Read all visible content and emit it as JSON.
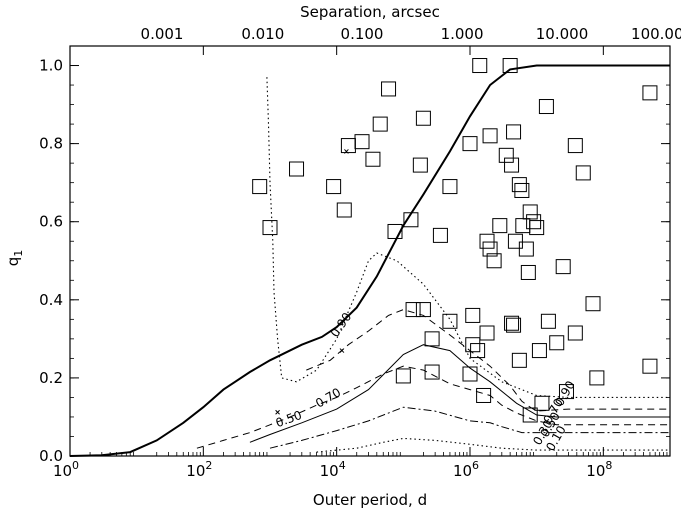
{
  "chart_data": {
    "type": "scatter",
    "title": "",
    "xlabel": "Outer period, d",
    "ylabel": "q",
    "ylabel_sub": "1",
    "xscale": "log",
    "xlim": [
      1,
      1000000000
    ],
    "ylim": [
      0,
      1.05
    ],
    "x_ticks": [
      {
        "value": 1,
        "base": "10",
        "exp": "0"
      },
      {
        "value": 100,
        "base": "10",
        "exp": "2"
      },
      {
        "value": 10000,
        "base": "10",
        "exp": "4"
      },
      {
        "value": 1000000,
        "base": "10",
        "exp": "6"
      },
      {
        "value": 100000000,
        "base": "10",
        "exp": "8"
      }
    ],
    "y_ticks": [
      {
        "value": 0.0,
        "label": "0.0"
      },
      {
        "value": 0.2,
        "label": "0.2"
      },
      {
        "value": 0.4,
        "label": "0.4"
      },
      {
        "value": 0.6,
        "label": "0.6"
      },
      {
        "value": 0.8,
        "label": "0.8"
      },
      {
        "value": 1.0,
        "label": "1.0"
      }
    ],
    "top_axis": {
      "label": "Separation, arcsec",
      "ticks": [
        {
          "x": 24,
          "label": "0.001"
        },
        {
          "x": 780,
          "label": "0.010"
        },
        {
          "x": 24000,
          "label": "0.100"
        },
        {
          "x": 760000,
          "label": "1.000"
        },
        {
          "x": 24000000,
          "label": "10.000"
        },
        {
          "x": 760000000,
          "label": "100.000"
        }
      ]
    },
    "points": [
      {
        "x": 700,
        "y": 0.69
      },
      {
        "x": 1000,
        "y": 0.585
      },
      {
        "x": 2500,
        "y": 0.735
      },
      {
        "x": 9000,
        "y": 0.69
      },
      {
        "x": 13000,
        "y": 0.63
      },
      {
        "x": 15000,
        "y": 0.795
      },
      {
        "x": 24000,
        "y": 0.805
      },
      {
        "x": 35000,
        "y": 0.76
      },
      {
        "x": 45000,
        "y": 0.85
      },
      {
        "x": 60000,
        "y": 0.94
      },
      {
        "x": 75000,
        "y": 0.575
      },
      {
        "x": 100000,
        "y": 0.205
      },
      {
        "x": 130000,
        "y": 0.605
      },
      {
        "x": 180000,
        "y": 0.745
      },
      {
        "x": 200000,
        "y": 0.865
      },
      {
        "x": 140000,
        "y": 0.375
      },
      {
        "x": 200000,
        "y": 0.375
      },
      {
        "x": 270000,
        "y": 0.3
      },
      {
        "x": 270000,
        "y": 0.215
      },
      {
        "x": 360000,
        "y": 0.565
      },
      {
        "x": 500000,
        "y": 0.69
      },
      {
        "x": 500000,
        "y": 0.345
      },
      {
        "x": 1000000,
        "y": 0.8
      },
      {
        "x": 1000000,
        "y": 0.21
      },
      {
        "x": 1100000,
        "y": 0.36
      },
      {
        "x": 1100000,
        "y": 0.285
      },
      {
        "x": 1300000,
        "y": 0.27
      },
      {
        "x": 1600000,
        "y": 0.155
      },
      {
        "x": 1400000,
        "y": 1.0
      },
      {
        "x": 1800000,
        "y": 0.55
      },
      {
        "x": 2000000,
        "y": 0.82
      },
      {
        "x": 2000000,
        "y": 0.53
      },
      {
        "x": 1800000,
        "y": 0.315
      },
      {
        "x": 2300000,
        "y": 0.5
      },
      {
        "x": 2800000,
        "y": 0.59
      },
      {
        "x": 3500000,
        "y": 0.77
      },
      {
        "x": 4000000,
        "y": 1.0
      },
      {
        "x": 4200000,
        "y": 0.745
      },
      {
        "x": 4500000,
        "y": 0.83
      },
      {
        "x": 4800000,
        "y": 0.55
      },
      {
        "x": 4200000,
        "y": 0.34
      },
      {
        "x": 4500000,
        "y": 0.335
      },
      {
        "x": 5500000,
        "y": 0.695
      },
      {
        "x": 6000000,
        "y": 0.68
      },
      {
        "x": 6200000,
        "y": 0.59
      },
      {
        "x": 5500000,
        "y": 0.245
      },
      {
        "x": 7000000,
        "y": 0.53
      },
      {
        "x": 7500000,
        "y": 0.47
      },
      {
        "x": 8000000,
        "y": 0.625
      },
      {
        "x": 9000000,
        "y": 0.6
      },
      {
        "x": 10000000,
        "y": 0.585
      },
      {
        "x": 8000000,
        "y": 0.105
      },
      {
        "x": 11000000,
        "y": 0.27
      },
      {
        "x": 12000000,
        "y": 0.135
      },
      {
        "x": 14000000,
        "y": 0.895
      },
      {
        "x": 15000000,
        "y": 0.345
      },
      {
        "x": 20000000,
        "y": 0.29
      },
      {
        "x": 25000000,
        "y": 0.485
      },
      {
        "x": 28000000,
        "y": 0.165
      },
      {
        "x": 38000000,
        "y": 0.795
      },
      {
        "x": 50000000,
        "y": 0.725
      },
      {
        "x": 38000000,
        "y": 0.315
      },
      {
        "x": 70000000,
        "y": 0.39
      },
      {
        "x": 80000000,
        "y": 0.2
      },
      {
        "x": 500000000,
        "y": 0.93
      },
      {
        "x": 500000000,
        "y": 0.23
      }
    ],
    "curves": [
      {
        "style": "solid-thick",
        "points": [
          [
            1,
            0
          ],
          [
            3,
            0.002
          ],
          [
            8,
            0.01
          ],
          [
            20,
            0.04
          ],
          [
            50,
            0.085
          ],
          [
            100,
            0.125
          ],
          [
            200,
            0.17
          ],
          [
            500,
            0.215
          ],
          [
            1000,
            0.245
          ],
          [
            3000,
            0.285
          ],
          [
            6000,
            0.305
          ],
          [
            10000,
            0.33
          ],
          [
            20000,
            0.38
          ],
          [
            40000,
            0.46
          ],
          [
            100000,
            0.59
          ],
          [
            200000,
            0.67
          ],
          [
            500000,
            0.78
          ],
          [
            1000000,
            0.87
          ],
          [
            2000000,
            0.95
          ],
          [
            4000000,
            0.99
          ],
          [
            10000000,
            1.0
          ],
          [
            1000000000,
            1.0
          ]
        ]
      },
      {
        "style": "dotted",
        "points": [
          [
            900,
            0.97
          ],
          [
            950,
            0.85
          ],
          [
            1000,
            0.7
          ],
          [
            1100,
            0.55
          ],
          [
            1150,
            0.42
          ],
          [
            1300,
            0.3
          ],
          [
            1500,
            0.2
          ],
          [
            2500,
            0.19
          ],
          [
            5000,
            0.22
          ],
          [
            10000,
            0.3
          ],
          [
            20000,
            0.42
          ],
          [
            30000,
            0.5
          ],
          [
            40000,
            0.52
          ],
          [
            80000,
            0.5
          ],
          [
            200000,
            0.44
          ],
          [
            500000,
            0.35
          ],
          [
            1000000,
            0.25
          ],
          [
            3000000,
            0.19
          ],
          [
            10000000,
            0.155
          ],
          [
            30000000,
            0.15
          ],
          [
            1000000000,
            0.15
          ]
        ]
      },
      {
        "style": "dashed",
        "points": [
          [
            3500,
            0.22
          ],
          [
            8000,
            0.245
          ],
          [
            15000,
            0.285
          ],
          [
            30000,
            0.32
          ],
          [
            60000,
            0.36
          ],
          [
            100000,
            0.375
          ],
          [
            200000,
            0.36
          ],
          [
            500000,
            0.31
          ],
          [
            1000000,
            0.27
          ],
          [
            2000000,
            0.23
          ],
          [
            4000000,
            0.18
          ],
          [
            6000000,
            0.14
          ],
          [
            8000000,
            0.125
          ],
          [
            10000000,
            0.115
          ],
          [
            30000000,
            0.12
          ],
          [
            1000000000,
            0.12
          ]
        ]
      },
      {
        "style": "dashed",
        "points": [
          [
            80,
            0.02
          ],
          [
            200,
            0.04
          ],
          [
            500,
            0.06
          ],
          [
            1000,
            0.08
          ],
          [
            2000,
            0.1
          ],
          [
            5000,
            0.13
          ],
          [
            10000,
            0.15
          ],
          [
            20000,
            0.175
          ],
          [
            50000,
            0.21
          ],
          [
            100000,
            0.23
          ],
          [
            200000,
            0.22
          ],
          [
            500000,
            0.185
          ],
          [
            1000000,
            0.17
          ],
          [
            2000000,
            0.155
          ],
          [
            3000000,
            0.13
          ],
          [
            5000000,
            0.11
          ],
          [
            10000000,
            0.09
          ],
          [
            20000000,
            0.08
          ],
          [
            50000000,
            0.08
          ],
          [
            1000000000,
            0.08
          ]
        ]
      },
      {
        "style": "solid-thin",
        "points": [
          [
            500,
            0.035
          ],
          [
            1000,
            0.055
          ],
          [
            3000,
            0.085
          ],
          [
            10000,
            0.12
          ],
          [
            30000,
            0.17
          ],
          [
            100000,
            0.26
          ],
          [
            200000,
            0.285
          ],
          [
            500000,
            0.27
          ],
          [
            1000000,
            0.225
          ],
          [
            2000000,
            0.19
          ],
          [
            5000000,
            0.135
          ],
          [
            10000000,
            0.105
          ],
          [
            20000000,
            0.1
          ],
          [
            1000000000,
            0.1
          ]
        ]
      },
      {
        "style": "dashdot",
        "points": [
          [
            1000,
            0.02
          ],
          [
            3000,
            0.04
          ],
          [
            10000,
            0.065
          ],
          [
            30000,
            0.09
          ],
          [
            100000,
            0.125
          ],
          [
            300000,
            0.115
          ],
          [
            1000000,
            0.09
          ],
          [
            2000000,
            0.085
          ],
          [
            3000000,
            0.075
          ],
          [
            6000000,
            0.06
          ],
          [
            10000000,
            0.06
          ],
          [
            1000000000,
            0.06
          ]
        ]
      },
      {
        "style": "dotted",
        "points": [
          [
            5000,
            0.01
          ],
          [
            20000,
            0.02
          ],
          [
            50000,
            0.035
          ],
          [
            100000,
            0.045
          ],
          [
            300000,
            0.04
          ],
          [
            1000000,
            0.03
          ],
          [
            3000000,
            0.02
          ],
          [
            10000000,
            0.015
          ],
          [
            1000000000,
            0.015
          ]
        ]
      }
    ],
    "contour_labels": [
      {
        "x": 13000,
        "y": 0.33,
        "rotation": -55,
        "text": "0.90"
      },
      {
        "x": 8000,
        "y": 0.14,
        "rotation": -30,
        "text": "0.70"
      },
      {
        "x": 2000,
        "y": 0.085,
        "rotation": -20,
        "text": "0.50"
      },
      {
        "x": 30000000,
        "y": 0.155,
        "rotation": -60,
        "text": "0.90"
      },
      {
        "x": 20000000,
        "y": 0.11,
        "rotation": -60,
        "text": "0.70"
      },
      {
        "x": 18000000,
        "y": 0.075,
        "rotation": -60,
        "text": "0.50"
      },
      {
        "x": 14000000,
        "y": 0.055,
        "rotation": -60,
        "text": "0.30"
      },
      {
        "x": 22000000,
        "y": 0.04,
        "rotation": -60,
        "text": "0.10"
      }
    ],
    "crosses": [
      {
        "x": 1300,
        "y": 0.112
      },
      {
        "x": 12000,
        "y": 0.27
      },
      {
        "x": 14000,
        "y": 0.78
      }
    ]
  }
}
